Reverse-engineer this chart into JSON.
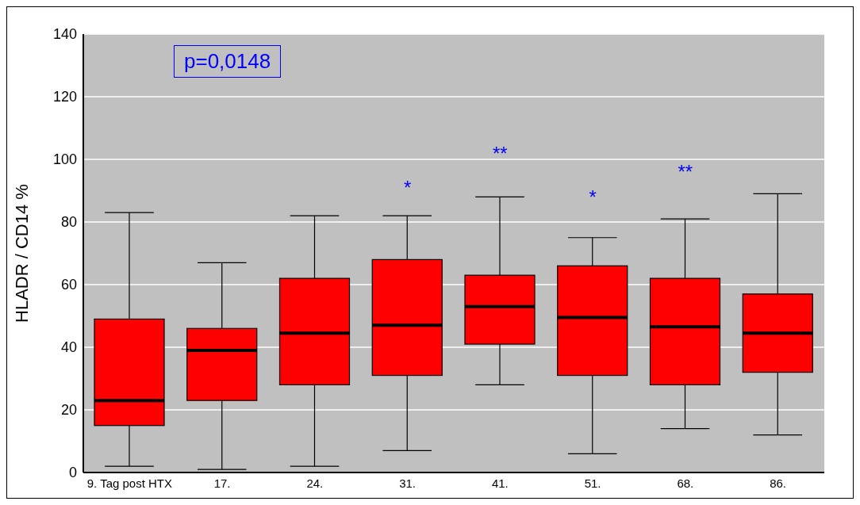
{
  "chart_data": {
    "type": "box",
    "ylabel": "HLADR / CD14  %",
    "categories": [
      "9. Tag post HTX",
      "17.",
      "24.",
      "31.",
      "41.",
      "51.",
      "68.",
      "86."
    ],
    "color": "#ff0000",
    "boxes": [
      {
        "low": 2,
        "q1": 15,
        "median": 23,
        "q3": 49,
        "high": 83
      },
      {
        "low": 1,
        "q1": 23,
        "median": 39,
        "q3": 46,
        "high": 67
      },
      {
        "low": 2,
        "q1": 28,
        "median": 44.5,
        "q3": 62,
        "high": 82
      },
      {
        "low": 7,
        "q1": 31,
        "median": 47,
        "q3": 68,
        "high": 82
      },
      {
        "low": 28,
        "q1": 41,
        "median": 53,
        "q3": 63,
        "high": 88
      },
      {
        "low": 6,
        "q1": 31,
        "median": 49.5,
        "q3": 66,
        "high": 75
      },
      {
        "low": 14,
        "q1": 28,
        "median": 46.5,
        "q3": 62,
        "high": 81
      },
      {
        "low": 12,
        "q1": 32,
        "median": 44.5,
        "q3": 57,
        "high": 89
      }
    ],
    "ylim": [
      0,
      140
    ],
    "yticks": [
      0,
      20,
      40,
      60,
      80,
      100,
      120,
      140
    ],
    "grid": "y",
    "annotations": [
      "p=0,0148",
      "*",
      "**",
      "*",
      "**"
    ]
  }
}
